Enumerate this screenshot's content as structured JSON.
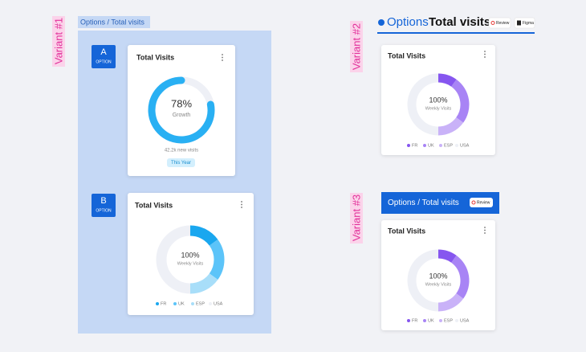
{
  "variant1": {
    "label": "Variant #1",
    "frame_title": "Options / Total visits",
    "card_a": {
      "badge": "A",
      "badge_sub": "OPTION",
      "title": "Total Visits",
      "progress": {
        "value": 78,
        "label": "78%"
      },
      "progress_sub": "Growth",
      "note": "42.2k new visits",
      "chip": "This Year"
    },
    "card_b": {
      "badge": "B",
      "badge_sub": "OPTION",
      "title": "Total Visits",
      "center": "100%",
      "center_sub": "Weekly Visits",
      "segments": [
        {
          "name": "FR",
          "value": 15,
          "color": "#1aa7ef"
        },
        {
          "name": "UK",
          "value": 20,
          "color": "#5cc4f9"
        },
        {
          "name": "ESP",
          "value": 15,
          "color": "#a8def9"
        },
        {
          "name": "USA",
          "value": 50,
          "color": "#eef0f6"
        }
      ]
    }
  },
  "variant2": {
    "label": "Variant #2",
    "header_a": "Options",
    "header_b": "Total visits",
    "button_review": "Review",
    "button_figma": "Figma",
    "card": {
      "title": "Total Visits",
      "center": "100%",
      "center_sub": "Weekly Visits",
      "segments": [
        {
          "name": "FR",
          "value": 10,
          "color": "#8656ef"
        },
        {
          "name": "UK",
          "value": 25,
          "color": "#a884f5"
        },
        {
          "name": "ESP",
          "value": 15,
          "color": "#c9b2f8"
        },
        {
          "name": "USA",
          "value": 50,
          "color": "#eef0f6"
        }
      ]
    }
  },
  "variant3": {
    "label": "Variant #3",
    "header": "Options / Total visits",
    "button_review": "Review",
    "card": {
      "title": "Total Visits",
      "center": "100%",
      "center_sub": "Weekly Visits",
      "segments": [
        {
          "name": "FR",
          "value": 10,
          "color": "#8656ef"
        },
        {
          "name": "UK",
          "value": 25,
          "color": "#a884f5"
        },
        {
          "name": "ESP",
          "value": 15,
          "color": "#c9b2f8"
        },
        {
          "name": "USA",
          "value": 50,
          "color": "#eef0f6"
        }
      ]
    }
  }
}
